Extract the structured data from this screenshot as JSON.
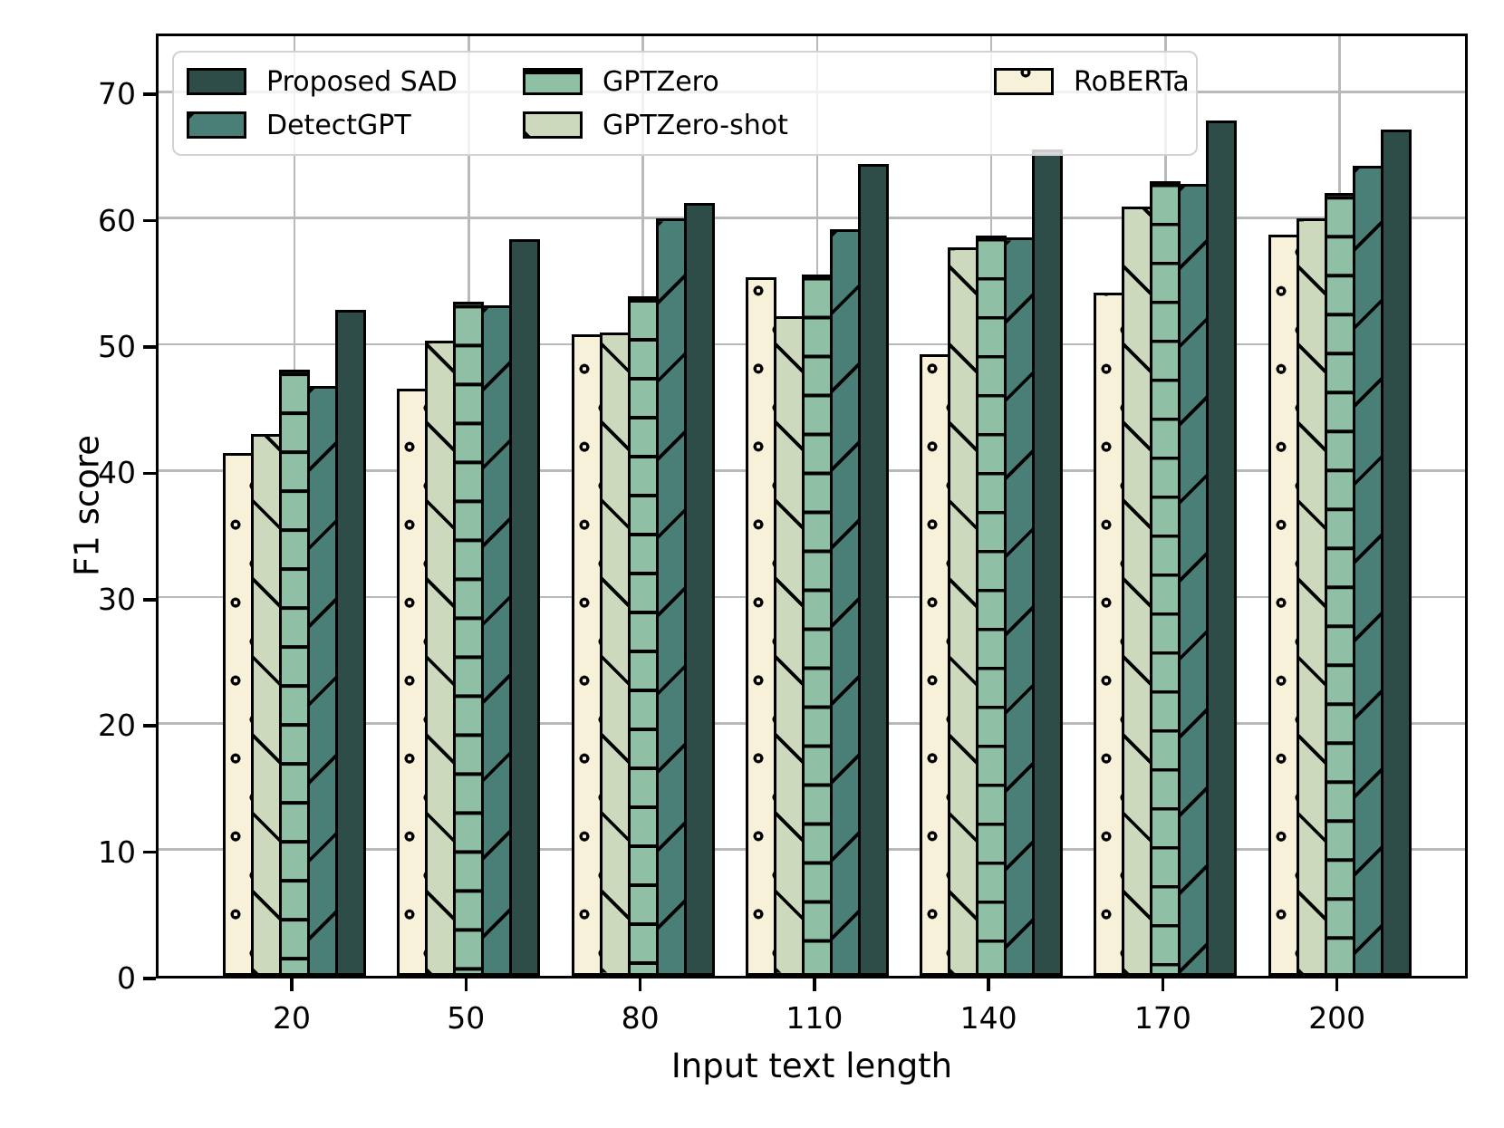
{
  "figure": {
    "y_ticks": [
      0,
      10,
      20,
      30,
      40,
      50,
      60,
      70
    ],
    "legend_order": [
      "Proposed SAD",
      "DetectGPT",
      "GPTZero",
      "GPTZero-shot",
      "RoBERTa"
    ]
  },
  "chart_data": {
    "type": "bar",
    "title": "",
    "xlabel": "Input text length",
    "ylabel": "F1 score",
    "categories": [
      "20",
      "50",
      "80",
      "110",
      "140",
      "170",
      "200"
    ],
    "series": [
      {
        "name": "RoBERTa",
        "hatch": "o",
        "color": "#f8f1d9",
        "values": [
          41.4,
          46.5,
          50.8,
          55.3,
          49.2,
          54.1,
          58.7
        ]
      },
      {
        "name": "GPTZero-shot",
        "hatch": "\\",
        "color": "#cdd9bd",
        "values": [
          42.9,
          50.3,
          50.9,
          52.2,
          57.7,
          60.9,
          60.0
        ]
      },
      {
        "name": "GPTZero",
        "hatch": "-",
        "color": "#8fc0a5",
        "values": [
          48.0,
          53.4,
          53.8,
          55.5,
          58.6,
          62.9,
          62.0
        ]
      },
      {
        "name": "DetectGPT",
        "hatch": "/",
        "color": "#4a7f78",
        "values": [
          46.7,
          53.1,
          60.0,
          59.1,
          58.5,
          62.7,
          64.1
        ]
      },
      {
        "name": "Proposed SAD",
        "hatch": "",
        "color": "#2e4d48",
        "values": [
          52.7,
          58.3,
          61.2,
          64.3,
          65.4,
          67.7,
          67.0
        ]
      }
    ],
    "bar_draw_order_left_to_right": [
      "RoBERTa",
      "GPTZero-shot",
      "GPTZero",
      "DetectGPT",
      "Proposed SAD"
    ],
    "ylim": [
      0,
      74.8
    ],
    "grid": true,
    "edge_color": "#000000",
    "grid_color": "#b9b9b9",
    "legend_position": "upper left, 3 columns, semi-transparent white"
  }
}
